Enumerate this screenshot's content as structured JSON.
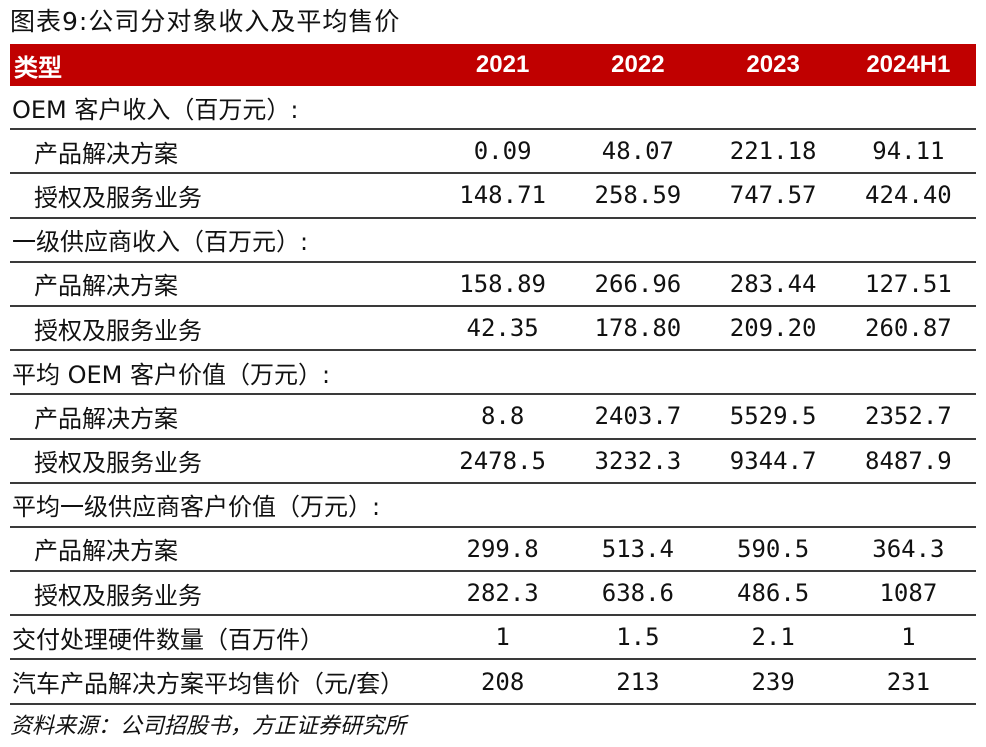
{
  "title": "图表9:公司分对象收入及平均售价",
  "header": {
    "label": "类型",
    "years": [
      "2021",
      "2022",
      "2023",
      "2024H1"
    ]
  },
  "rows": [
    {
      "type": "section",
      "label": "OEM 客户收入（百万元）:",
      "values": [
        "",
        "",
        "",
        ""
      ]
    },
    {
      "type": "sub",
      "label": "产品解决方案",
      "values": [
        "0.09",
        "48.07",
        "221.18",
        "94.11"
      ]
    },
    {
      "type": "sub",
      "label": "授权及服务业务",
      "values": [
        "148.71",
        "258.59",
        "747.57",
        "424.40"
      ]
    },
    {
      "type": "section",
      "label": "一级供应商收入（百万元）:",
      "values": [
        "",
        "",
        "",
        ""
      ]
    },
    {
      "type": "sub",
      "label": "产品解决方案",
      "values": [
        "158.89",
        "266.96",
        "283.44",
        "127.51"
      ]
    },
    {
      "type": "sub",
      "label": "授权及服务业务",
      "values": [
        "42.35",
        "178.80",
        "209.20",
        "260.87"
      ]
    },
    {
      "type": "section",
      "label": "平均 OEM 客户价值（万元）:",
      "values": [
        "",
        "",
        "",
        ""
      ]
    },
    {
      "type": "sub",
      "label": "产品解决方案",
      "values": [
        "8.8",
        "2403.7",
        "5529.5",
        "2352.7"
      ]
    },
    {
      "type": "sub",
      "label": "授权及服务业务",
      "values": [
        "2478.5",
        "3232.3",
        "9344.7",
        "8487.9"
      ]
    },
    {
      "type": "section",
      "label": "平均一级供应商客户价值（万元）:",
      "values": [
        "",
        "",
        "",
        ""
      ]
    },
    {
      "type": "sub",
      "label": "产品解决方案",
      "values": [
        "299.8",
        "513.4",
        "590.5",
        "364.3"
      ]
    },
    {
      "type": "sub",
      "label": "授权及服务业务",
      "values": [
        "282.3",
        "638.6",
        "486.5",
        "1087"
      ]
    },
    {
      "type": "section",
      "label": "交付处理硬件数量（百万件）",
      "values": [
        "1",
        "1.5",
        "2.1",
        "1"
      ]
    },
    {
      "type": "section",
      "label": "汽车产品解决方案平均售价（元/套）",
      "values": [
        "208",
        "213",
        "239",
        "231"
      ]
    }
  ],
  "source": "资料来源：公司招股书，方正证券研究所"
}
